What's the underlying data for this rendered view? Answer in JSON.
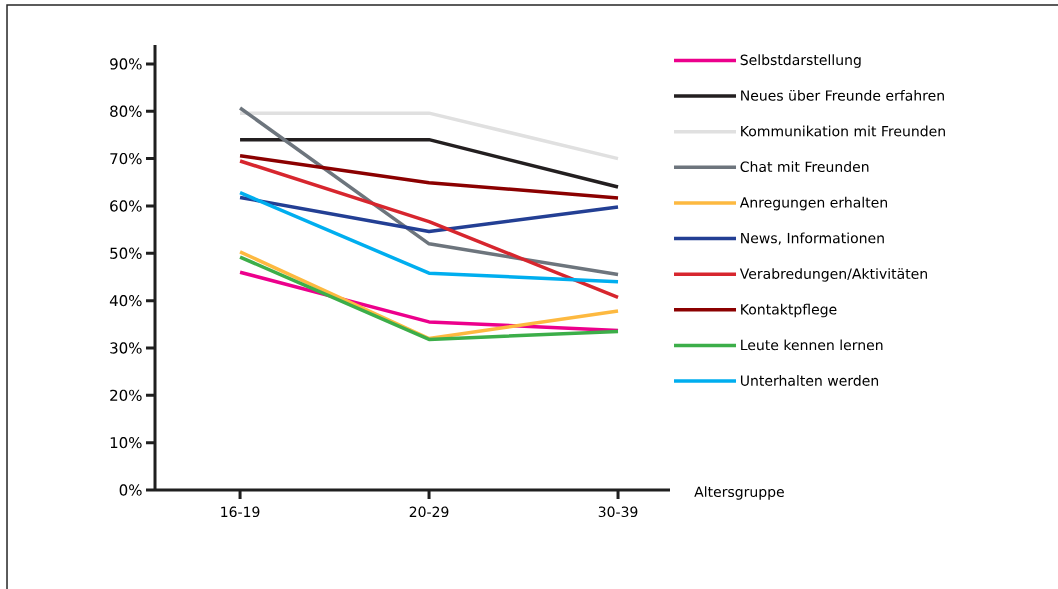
{
  "chart_data": {
    "type": "line",
    "xlabel": "Altersgruppe",
    "categories": [
      "16-19",
      "20-29",
      "30-39"
    ],
    "ylim": [
      0,
      94
    ],
    "yticks": [
      {
        "value": 0,
        "label": "0%"
      },
      {
        "value": 10,
        "label": "10%"
      },
      {
        "value": 20,
        "label": "20%"
      },
      {
        "value": 30,
        "label": "30%"
      },
      {
        "value": 40,
        "label": "40%"
      },
      {
        "value": 50,
        "label": "50%"
      },
      {
        "value": 60,
        "label": "60%"
      },
      {
        "value": 70,
        "label": "70%"
      },
      {
        "value": 80,
        "label": "80%"
      },
      {
        "value": 90,
        "label": "90%"
      }
    ],
    "series": [
      {
        "name": "Selbstdarstellung",
        "color": "#ec008c",
        "values": [
          46,
          35.5,
          33.7
        ]
      },
      {
        "name": "Neues über Freunde erfahren",
        "color": "#231f20",
        "values": [
          74,
          74,
          64
        ]
      },
      {
        "name": "Kommunikation mit Freunden",
        "color": "#e0e0e0",
        "values": [
          79.6,
          79.6,
          70
        ]
      },
      {
        "name": "Chat mit Freunden",
        "color": "#6d757d",
        "values": [
          80.7,
          52,
          45.5
        ]
      },
      {
        "name": "Anregungen erhalten",
        "color": "#fdb940",
        "values": [
          50.3,
          32,
          37.8
        ]
      },
      {
        "name": "News, Informationen",
        "color": "#233f94",
        "values": [
          61.8,
          54.6,
          59.8
        ]
      },
      {
        "name": "Verabredungen/Aktivitäten",
        "color": "#d7262e",
        "values": [
          69.5,
          56.7,
          40.7
        ]
      },
      {
        "name": "Kontaktpflege",
        "color": "#8b0000",
        "values": [
          70.6,
          64.9,
          61.7
        ]
      },
      {
        "name": "Leute kennen lernen",
        "color": "#3cae49",
        "values": [
          49.2,
          31.8,
          33.5
        ]
      },
      {
        "name": "Unterhalten werden",
        "color": "#00aeef",
        "values": [
          62.8,
          45.8,
          44
        ]
      }
    ],
    "legend": "right",
    "grid": false,
    "marker": "none",
    "line_style": "solid"
  }
}
